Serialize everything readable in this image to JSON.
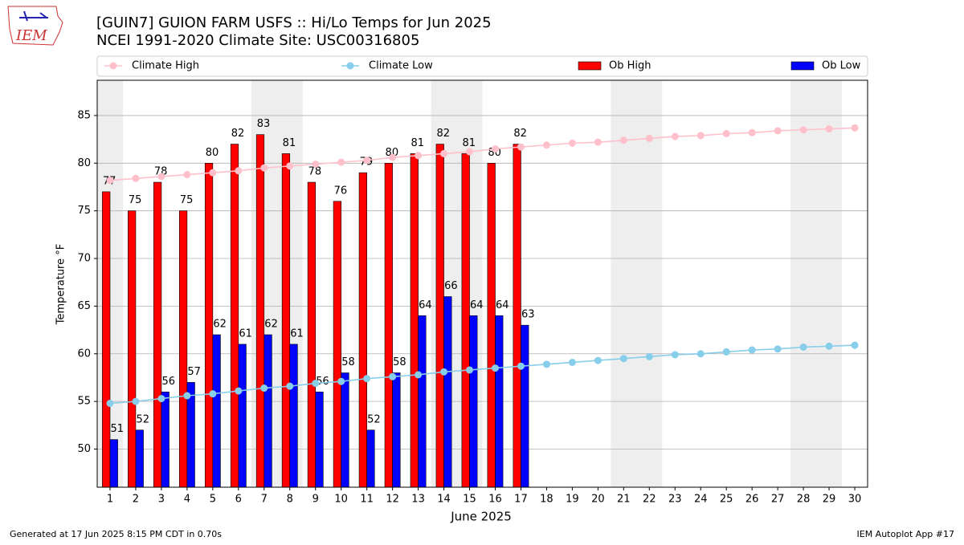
{
  "chart_data": {
    "type": "bar",
    "title": "[GUIN7] GUION FARM USFS :: Hi/Lo Temps for Jun 2025",
    "subtitle": "NCEI 1991-2020 Climate Site: USC00316805",
    "x_label": "June 2025",
    "y_label": "Temperature °F",
    "footer_left": "Generated at 17 Jun 2025 8:15 PM CDT in 0.70s",
    "footer_right": "IEM Autoplot App #17",
    "logo": "IEM",
    "x": [
      1,
      2,
      3,
      4,
      5,
      6,
      7,
      8,
      9,
      10,
      11,
      12,
      13,
      14,
      15,
      16,
      17,
      18,
      19,
      20,
      21,
      22,
      23,
      24,
      25,
      26,
      27,
      28,
      29,
      30
    ],
    "xlim": [
      0.5,
      30.5
    ],
    "xticks": [
      1,
      2,
      3,
      4,
      5,
      6,
      7,
      8,
      9,
      10,
      11,
      12,
      13,
      14,
      15,
      16,
      17,
      18,
      19,
      20,
      21,
      22,
      23,
      24,
      25,
      26,
      27,
      28,
      29,
      30
    ],
    "ylim": [
      46,
      88.7
    ],
    "yticks": [
      50,
      55,
      60,
      65,
      70,
      75,
      80,
      85
    ],
    "grid": true,
    "weekend_days": [
      1,
      7,
      8,
      14,
      15,
      21,
      22,
      28,
      29
    ],
    "series": [
      {
        "name": "Climate High",
        "type": "line",
        "color": "#ffc0cb",
        "values": [
          78.2,
          78.4,
          78.6,
          78.8,
          79.0,
          79.2,
          79.5,
          79.7,
          79.9,
          80.1,
          80.3,
          80.6,
          80.8,
          81.0,
          81.2,
          81.5,
          81.7,
          81.9,
          82.1,
          82.2,
          82.4,
          82.6,
          82.8,
          82.9,
          83.1,
          83.2,
          83.4,
          83.5,
          83.6,
          83.7
        ]
      },
      {
        "name": "Climate Low",
        "type": "line",
        "color": "#87ceeb",
        "values": [
          54.8,
          55.0,
          55.3,
          55.6,
          55.8,
          56.1,
          56.4,
          56.6,
          56.9,
          57.1,
          57.4,
          57.6,
          57.8,
          58.1,
          58.3,
          58.5,
          58.7,
          58.9,
          59.1,
          59.3,
          59.5,
          59.7,
          59.9,
          60.0,
          60.2,
          60.4,
          60.5,
          60.7,
          60.8,
          60.9
        ]
      },
      {
        "name": "Ob High",
        "type": "bar",
        "color": "#ff0000",
        "values": [
          77,
          75,
          78,
          75,
          80,
          82,
          83,
          81,
          78,
          76,
          79,
          80,
          81,
          82,
          81,
          80,
          82,
          null,
          null,
          null,
          null,
          null,
          null,
          null,
          null,
          null,
          null,
          null,
          null,
          null
        ]
      },
      {
        "name": "Ob Low",
        "type": "bar",
        "color": "#0000ff",
        "values": [
          51,
          52,
          56,
          57,
          62,
          61,
          62,
          61,
          56,
          58,
          52,
          58,
          64,
          66,
          64,
          64,
          63,
          null,
          null,
          null,
          null,
          null,
          null,
          null,
          null,
          null,
          null,
          null,
          null,
          null
        ]
      }
    ]
  }
}
